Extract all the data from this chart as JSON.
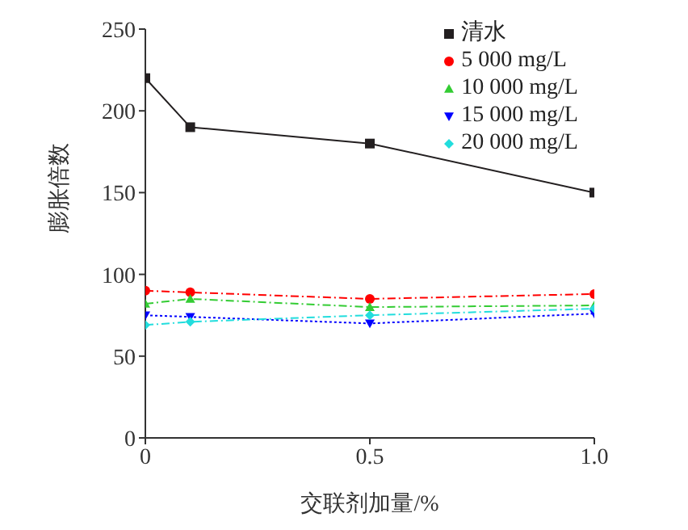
{
  "chart_data": {
    "type": "line",
    "xlabel": "交联剂加量/%",
    "ylabel": "膨胀倍数",
    "x": [
      0,
      0.1,
      0.5,
      1.0
    ],
    "xlim": [
      0,
      1
    ],
    "xticks": [
      0,
      0.5,
      {
        "value": 1,
        "label": "1.0"
      }
    ],
    "ylim": [
      0,
      250
    ],
    "yticks": [
      0,
      50,
      100,
      150,
      200,
      250
    ],
    "legend": "top right",
    "grid": false,
    "series": [
      {
        "name": "清水",
        "color": "#231f20",
        "values": [
          220,
          190,
          180,
          150
        ],
        "marker": "square",
        "line_style": "solid"
      },
      {
        "name": "5 000 mg/L",
        "color": "#ff0000",
        "values": [
          90,
          89,
          85,
          88
        ],
        "marker": "circle",
        "line_style": "dashed"
      },
      {
        "name": "10 000 mg/L",
        "color": "#33cc33",
        "values": [
          82,
          85,
          80,
          81
        ],
        "marker": "triangle",
        "line_style": "dashed"
      },
      {
        "name": "15 000 mg/L",
        "color": "#0000ff",
        "values": [
          75,
          74,
          70,
          76
        ],
        "marker": "triangle-down",
        "line_style": "dotted"
      },
      {
        "name": "20 000 mg/L",
        "color": "#22dddd",
        "values": [
          69,
          71,
          75,
          79
        ],
        "marker": "diamond",
        "line_style": "dashed"
      }
    ]
  }
}
